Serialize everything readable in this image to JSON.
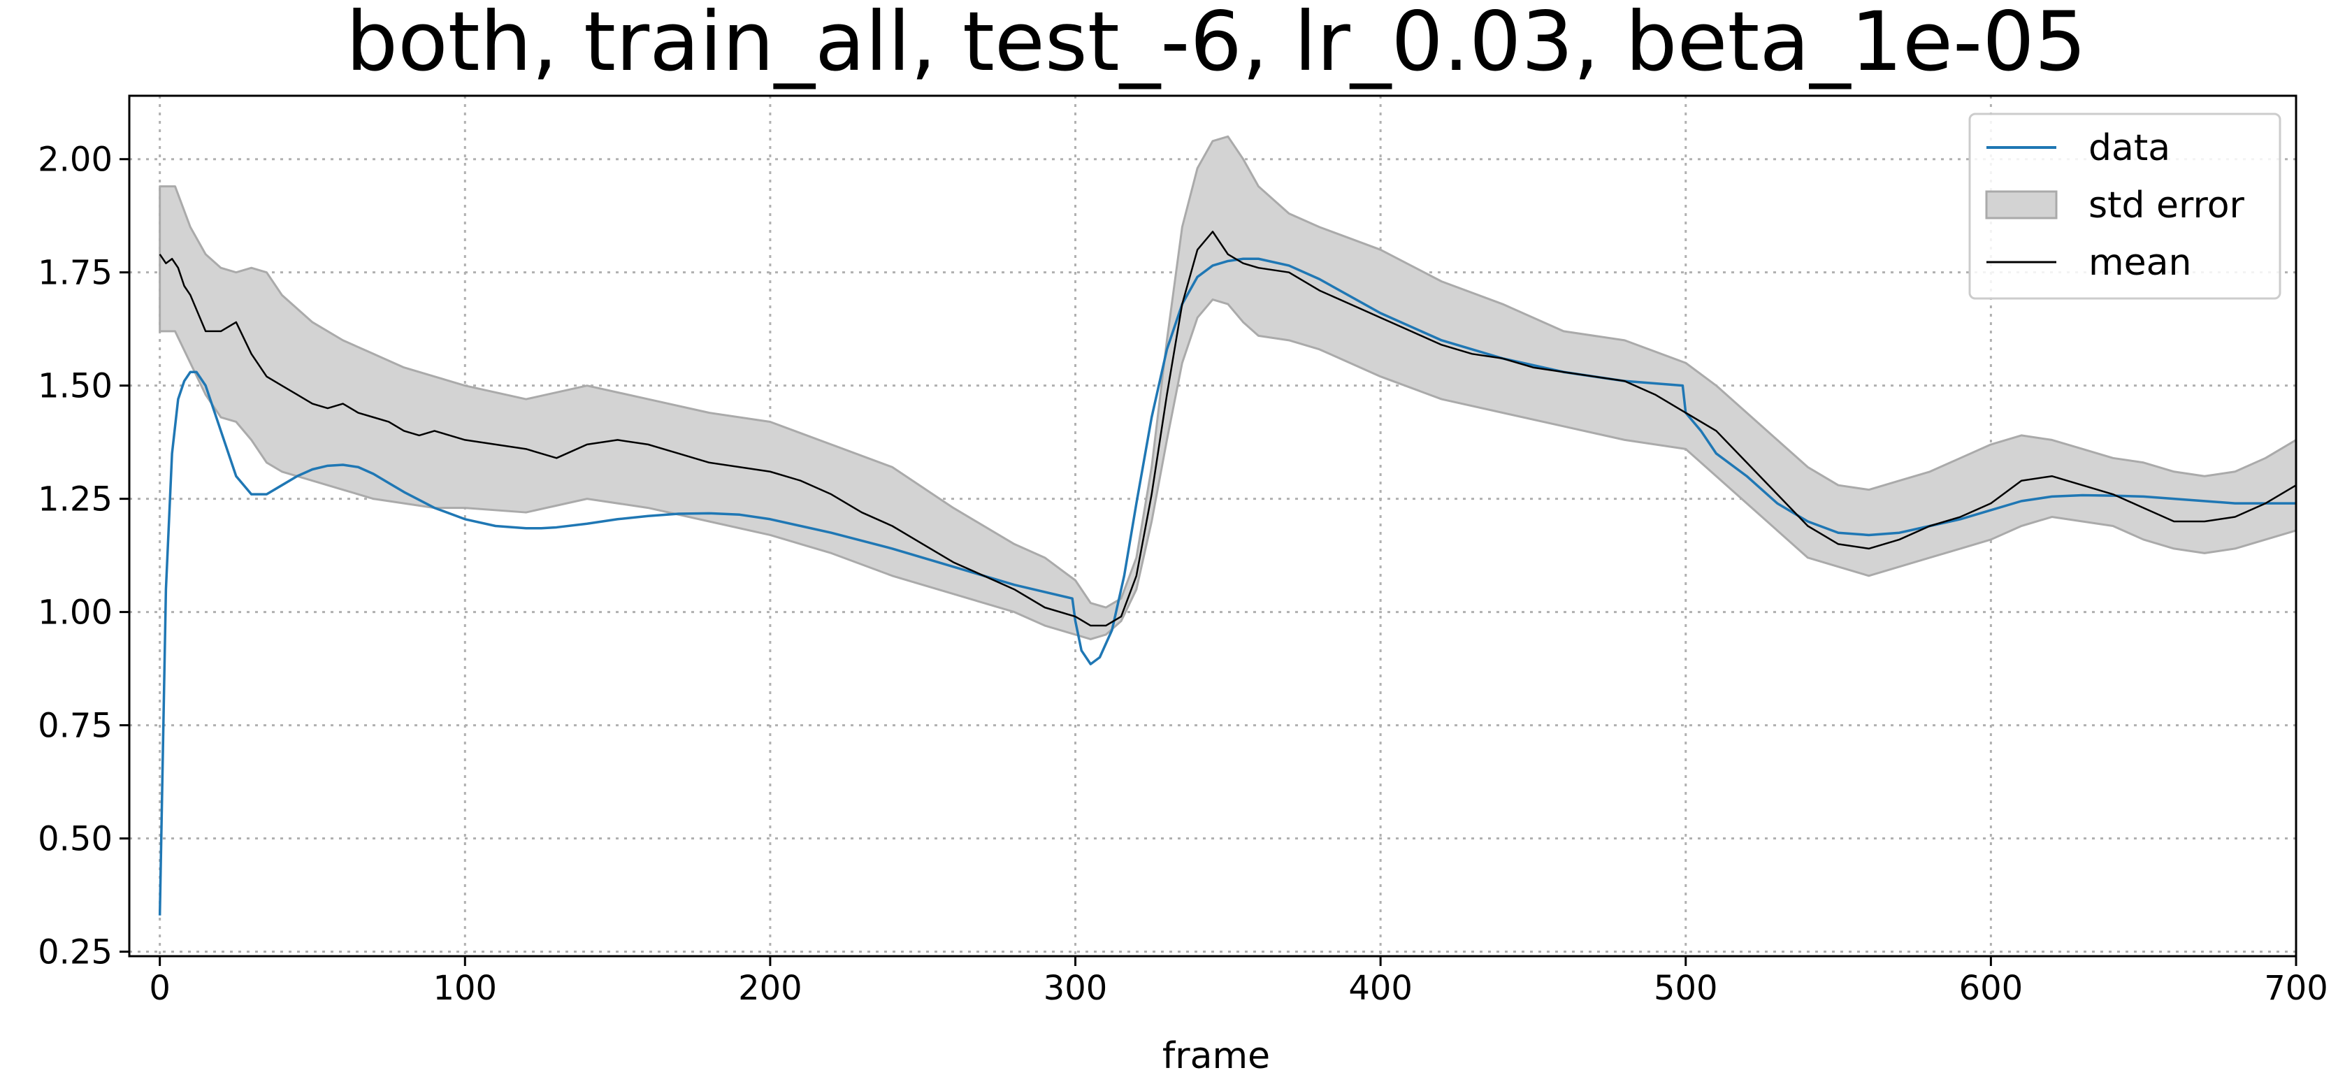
{
  "chart_data": {
    "type": "line",
    "title": "both, train_all, test_-6, lr_0.03, beta_1e-05",
    "xlabel": "frame",
    "ylabel": "",
    "xlim": [
      -10,
      700
    ],
    "ylim": [
      0.24,
      2.14
    ],
    "xticks": [
      0,
      100,
      200,
      300,
      400,
      500,
      600,
      700
    ],
    "xtick_labels": [
      "0",
      "100",
      "200",
      "300",
      "400",
      "500",
      "600",
      "700"
    ],
    "yticks": [
      0.25,
      0.5,
      0.75,
      1.0,
      1.25,
      1.5,
      1.75,
      2.0
    ],
    "ytick_labels": [
      "0.25",
      "0.50",
      "0.75",
      "1.00",
      "1.25",
      "1.50",
      "1.75",
      "2.00"
    ],
    "grid": true,
    "legend_position": "top-right",
    "series": [
      {
        "name": "data",
        "kind": "line",
        "color": "#1f77b4",
        "x": [
          0,
          2,
          4,
          6,
          8,
          10,
          12,
          15,
          20,
          25,
          30,
          35,
          40,
          45,
          50,
          55,
          60,
          65,
          70,
          75,
          80,
          90,
          100,
          110,
          120,
          125,
          130,
          140,
          150,
          160,
          170,
          180,
          190,
          200,
          220,
          240,
          260,
          280,
          299,
          300,
          302,
          305,
          308,
          312,
          316,
          320,
          325,
          330,
          335,
          340,
          345,
          350,
          355,
          360,
          370,
          380,
          400,
          420,
          440,
          460,
          480,
          499,
          500,
          505,
          510,
          520,
          530,
          540,
          550,
          560,
          570,
          580,
          590,
          600,
          610,
          620,
          630,
          640,
          650,
          660,
          670,
          680,
          690,
          700
        ],
        "y": [
          0.33,
          1.05,
          1.35,
          1.47,
          1.51,
          1.53,
          1.53,
          1.5,
          1.4,
          1.3,
          1.26,
          1.26,
          1.28,
          1.3,
          1.315,
          1.323,
          1.325,
          1.32,
          1.305,
          1.285,
          1.265,
          1.23,
          1.205,
          1.19,
          1.185,
          1.185,
          1.187,
          1.195,
          1.205,
          1.212,
          1.217,
          1.218,
          1.215,
          1.205,
          1.175,
          1.14,
          1.1,
          1.06,
          1.03,
          0.98,
          0.915,
          0.885,
          0.9,
          0.96,
          1.08,
          1.24,
          1.43,
          1.58,
          1.68,
          1.74,
          1.765,
          1.775,
          1.78,
          1.78,
          1.765,
          1.735,
          1.66,
          1.6,
          1.56,
          1.53,
          1.51,
          1.5,
          1.44,
          1.4,
          1.35,
          1.3,
          1.24,
          1.2,
          1.175,
          1.17,
          1.175,
          1.19,
          1.205,
          1.225,
          1.245,
          1.255,
          1.258,
          1.257,
          1.255,
          1.25,
          1.245,
          1.24,
          1.24,
          1.24
        ]
      },
      {
        "name": "std error",
        "kind": "band",
        "color": "#d3d3d3",
        "edge_color": "#aaaaaa",
        "x": [
          0,
          5,
          10,
          15,
          20,
          25,
          30,
          35,
          40,
          50,
          60,
          70,
          80,
          90,
          100,
          120,
          140,
          160,
          180,
          200,
          220,
          240,
          260,
          280,
          290,
          300,
          305,
          310,
          315,
          320,
          325,
          330,
          335,
          340,
          345,
          350,
          355,
          360,
          370,
          380,
          400,
          420,
          440,
          460,
          480,
          500,
          510,
          520,
          530,
          540,
          550,
          560,
          570,
          580,
          590,
          600,
          610,
          620,
          630,
          640,
          650,
          660,
          670,
          680,
          690,
          700
        ],
        "lower": [
          1.62,
          1.62,
          1.55,
          1.48,
          1.43,
          1.42,
          1.38,
          1.33,
          1.31,
          1.29,
          1.27,
          1.25,
          1.24,
          1.23,
          1.23,
          1.22,
          1.25,
          1.23,
          1.2,
          1.17,
          1.13,
          1.08,
          1.04,
          1.0,
          0.97,
          0.95,
          0.94,
          0.95,
          0.98,
          1.05,
          1.2,
          1.38,
          1.55,
          1.65,
          1.69,
          1.68,
          1.64,
          1.61,
          1.6,
          1.58,
          1.52,
          1.47,
          1.44,
          1.41,
          1.38,
          1.36,
          1.3,
          1.24,
          1.18,
          1.12,
          1.1,
          1.08,
          1.1,
          1.12,
          1.14,
          1.16,
          1.19,
          1.21,
          1.2,
          1.19,
          1.16,
          1.14,
          1.13,
          1.14,
          1.16,
          1.18
        ],
        "upper": [
          1.94,
          1.94,
          1.85,
          1.79,
          1.76,
          1.75,
          1.76,
          1.75,
          1.7,
          1.64,
          1.6,
          1.57,
          1.54,
          1.52,
          1.5,
          1.47,
          1.5,
          1.47,
          1.44,
          1.42,
          1.37,
          1.32,
          1.23,
          1.15,
          1.12,
          1.07,
          1.02,
          1.01,
          1.03,
          1.12,
          1.32,
          1.6,
          1.85,
          1.98,
          2.04,
          2.05,
          2.0,
          1.94,
          1.88,
          1.85,
          1.8,
          1.73,
          1.68,
          1.62,
          1.6,
          1.55,
          1.5,
          1.44,
          1.38,
          1.32,
          1.28,
          1.27,
          1.29,
          1.31,
          1.34,
          1.37,
          1.39,
          1.38,
          1.36,
          1.34,
          1.33,
          1.31,
          1.3,
          1.31,
          1.34,
          1.38
        ]
      },
      {
        "name": "mean",
        "kind": "line",
        "color": "#000000",
        "x": [
          0,
          2,
          4,
          6,
          8,
          10,
          15,
          20,
          25,
          30,
          35,
          40,
          45,
          50,
          55,
          60,
          65,
          70,
          75,
          80,
          85,
          90,
          95,
          100,
          110,
          120,
          130,
          140,
          150,
          160,
          170,
          180,
          190,
          200,
          210,
          220,
          230,
          240,
          250,
          260,
          270,
          280,
          290,
          300,
          305,
          310,
          315,
          320,
          325,
          330,
          335,
          340,
          345,
          350,
          355,
          360,
          370,
          380,
          390,
          400,
          410,
          420,
          430,
          440,
          450,
          460,
          470,
          480,
          490,
          500,
          510,
          520,
          530,
          540,
          550,
          560,
          570,
          580,
          590,
          600,
          610,
          620,
          630,
          640,
          650,
          660,
          670,
          680,
          690,
          700
        ],
        "y": [
          1.79,
          1.77,
          1.78,
          1.76,
          1.72,
          1.7,
          1.62,
          1.62,
          1.64,
          1.57,
          1.52,
          1.5,
          1.48,
          1.46,
          1.45,
          1.46,
          1.44,
          1.43,
          1.42,
          1.4,
          1.39,
          1.4,
          1.39,
          1.38,
          1.37,
          1.36,
          1.34,
          1.37,
          1.38,
          1.37,
          1.35,
          1.33,
          1.32,
          1.31,
          1.29,
          1.26,
          1.22,
          1.19,
          1.15,
          1.11,
          1.08,
          1.05,
          1.01,
          0.99,
          0.97,
          0.97,
          0.99,
          1.08,
          1.26,
          1.48,
          1.68,
          1.8,
          1.84,
          1.79,
          1.77,
          1.76,
          1.75,
          1.71,
          1.68,
          1.65,
          1.62,
          1.59,
          1.57,
          1.56,
          1.54,
          1.53,
          1.52,
          1.51,
          1.48,
          1.44,
          1.4,
          1.33,
          1.26,
          1.19,
          1.15,
          1.14,
          1.16,
          1.19,
          1.21,
          1.24,
          1.29,
          1.3,
          1.28,
          1.26,
          1.23,
          1.2,
          1.2,
          1.21,
          1.24,
          1.28
        ]
      }
    ],
    "legend": [
      {
        "label": "data",
        "style": "line",
        "color": "#1f77b4"
      },
      {
        "label": "std error",
        "style": "patch",
        "color": "#d3d3d3",
        "edge_color": "#aaaaaa"
      },
      {
        "label": "mean",
        "style": "line",
        "color": "#000000"
      }
    ]
  }
}
